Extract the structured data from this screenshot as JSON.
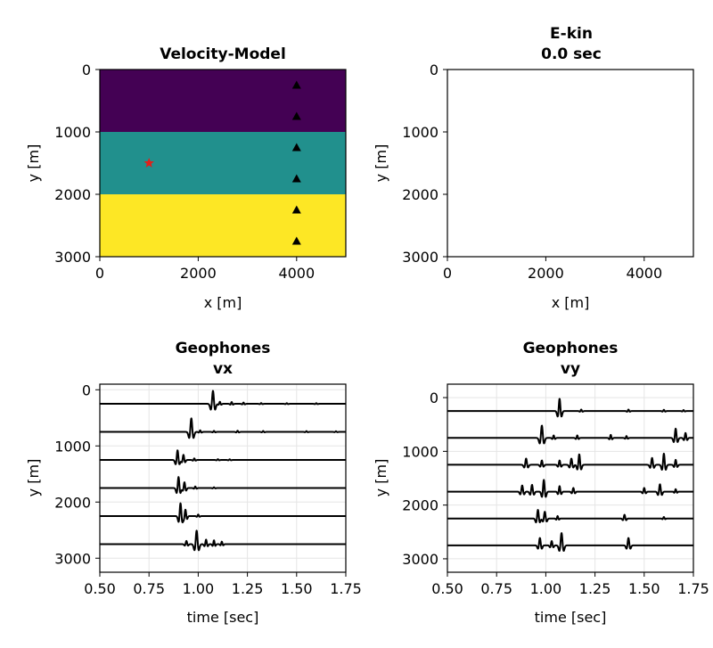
{
  "colors": {
    "layer1": "#440154",
    "layer2": "#21908d",
    "layer3": "#fde725",
    "source": "#e0201b",
    "receiver": "#000000",
    "trace": "#000000"
  },
  "chart_data": [
    {
      "type": "heatmap",
      "title": "Velocity-Model",
      "xlabel": "x [m]",
      "ylabel": "y [m]",
      "xlim": [
        0,
        5000
      ],
      "ylim": [
        3000,
        0
      ],
      "xticks": [
        "0",
        "2000",
        "4000"
      ],
      "xtick_values": [
        0,
        2000,
        4000
      ],
      "yticks": [
        "0",
        "1000",
        "2000",
        "3000"
      ],
      "ytick_values": [
        0,
        1000,
        2000,
        3000
      ],
      "layers": [
        {
          "y_from": 0,
          "y_to": 1000,
          "color": "#440154"
        },
        {
          "y_from": 1000,
          "y_to": 2000,
          "color": "#21908d"
        },
        {
          "y_from": 2000,
          "y_to": 3000,
          "color": "#fde725"
        }
      ],
      "source": {
        "x": 1000,
        "y": 1500,
        "marker": "star"
      },
      "receivers": [
        {
          "x": 4000,
          "y": 250
        },
        {
          "x": 4000,
          "y": 750
        },
        {
          "x": 4000,
          "y": 1250
        },
        {
          "x": 4000,
          "y": 1750
        },
        {
          "x": 4000,
          "y": 2250
        },
        {
          "x": 4000,
          "y": 2750
        }
      ],
      "grid": false
    },
    {
      "type": "heatmap",
      "title_line1": "E-kin",
      "title_line2": "0.0 sec",
      "xlabel": "x [m]",
      "ylabel": "y [m]",
      "xlim": [
        0,
        5000
      ],
      "ylim": [
        3000,
        0
      ],
      "xticks": [
        "0",
        "2000",
        "4000"
      ],
      "xtick_values": [
        0,
        2000,
        4000
      ],
      "yticks": [
        "0",
        "1000",
        "2000",
        "3000"
      ],
      "ytick_values": [
        0,
        1000,
        2000,
        3000
      ],
      "grid": false
    },
    {
      "type": "line",
      "title_line1": "Geophones",
      "title_line2": "vx",
      "xlabel": "time [sec]",
      "ylabel": "y [m]",
      "xlim": [
        0.5,
        1.75
      ],
      "ylim": [
        3250,
        -100
      ],
      "xticks": [
        "0.50",
        "0.75",
        "1.00",
        "1.25",
        "1.50",
        "1.75"
      ],
      "xtick_values": [
        0.5,
        0.75,
        1.0,
        1.25,
        1.5,
        1.75
      ],
      "yticks": [
        "0",
        "1000",
        "2000",
        "3000"
      ],
      "ytick_values": [
        0,
        1000,
        2000,
        3000
      ],
      "grid": true,
      "series": [
        {
          "offset": 250,
          "wavelets": [
            {
              "t": 1.075,
              "a": 1.0,
              "w": 0.009
            },
            {
              "t": 1.11,
              "a": 0.16,
              "w": 0.006
            },
            {
              "t": 1.17,
              "a": 0.14,
              "w": 0.006
            },
            {
              "t": 1.23,
              "a": 0.1,
              "w": 0.006
            },
            {
              "t": 1.32,
              "a": 0.06,
              "w": 0.006
            },
            {
              "t": 1.45,
              "a": 0.05,
              "w": 0.006
            },
            {
              "t": 1.6,
              "a": 0.05,
              "w": 0.006
            }
          ]
        },
        {
          "offset": 750,
          "wavelets": [
            {
              "t": 0.965,
              "a": 1.05,
              "w": 0.009
            },
            {
              "t": 1.01,
              "a": 0.12,
              "w": 0.006
            },
            {
              "t": 1.08,
              "a": 0.08,
              "w": 0.006
            },
            {
              "t": 1.2,
              "a": 0.09,
              "w": 0.006
            },
            {
              "t": 1.33,
              "a": 0.07,
              "w": 0.006
            },
            {
              "t": 1.55,
              "a": 0.06,
              "w": 0.006
            },
            {
              "t": 1.7,
              "a": 0.05,
              "w": 0.006
            }
          ]
        },
        {
          "offset": 1250,
          "wavelets": [
            {
              "t": 0.895,
              "a": 0.75,
              "w": 0.008
            },
            {
              "t": 0.925,
              "a": 0.4,
              "w": 0.007
            },
            {
              "t": 0.98,
              "a": 0.12,
              "w": 0.006
            },
            {
              "t": 1.1,
              "a": 0.06,
              "w": 0.006
            },
            {
              "t": 1.16,
              "a": 0.05,
              "w": 0.006
            }
          ]
        },
        {
          "offset": 1750,
          "wavelets": [
            {
              "t": 0.9,
              "a": 0.85,
              "w": 0.008
            },
            {
              "t": 0.93,
              "a": 0.45,
              "w": 0.007
            },
            {
              "t": 0.985,
              "a": 0.12,
              "w": 0.006
            },
            {
              "t": 1.08,
              "a": 0.06,
              "w": 0.006
            }
          ]
        },
        {
          "offset": 2250,
          "wavelets": [
            {
              "t": 0.91,
              "a": 1.0,
              "w": 0.008
            },
            {
              "t": 0.935,
              "a": 0.5,
              "w": 0.007
            },
            {
              "t": 1.0,
              "a": 0.12,
              "w": 0.006
            }
          ]
        },
        {
          "offset": 2750,
          "wavelets": [
            {
              "t": 0.992,
              "a": 1.05,
              "w": 0.009
            },
            {
              "t": 0.94,
              "a": 0.25,
              "w": 0.007
            },
            {
              "t": 1.04,
              "a": 0.35,
              "w": 0.007
            },
            {
              "t": 1.08,
              "a": 0.3,
              "w": 0.006
            },
            {
              "t": 1.12,
              "a": 0.2,
              "w": 0.006
            }
          ]
        }
      ]
    },
    {
      "type": "line",
      "title_line1": "Geophones",
      "title_line2": "vy",
      "xlabel": "time [sec]",
      "ylabel": "y [m]",
      "xlim": [
        0.5,
        1.75
      ],
      "ylim": [
        3250,
        -250
      ],
      "xticks": [
        "0.50",
        "0.75",
        "1.00",
        "1.25",
        "1.50",
        "1.75"
      ],
      "xtick_values": [
        0.5,
        0.75,
        1.0,
        1.25,
        1.5,
        1.75
      ],
      "yticks": [
        "0",
        "1000",
        "2000",
        "3000"
      ],
      "ytick_values": [
        0,
        1000,
        2000,
        3000
      ],
      "grid": true,
      "series": [
        {
          "offset": 250,
          "wavelets": [
            {
              "t": 1.07,
              "a": 1.0,
              "w": 0.008
            },
            {
              "t": 1.18,
              "a": 0.12,
              "w": 0.006
            },
            {
              "t": 1.42,
              "a": 0.12,
              "w": 0.006
            },
            {
              "t": 1.6,
              "a": 0.1,
              "w": 0.006
            },
            {
              "t": 1.7,
              "a": 0.08,
              "w": 0.006
            }
          ]
        },
        {
          "offset": 750,
          "wavelets": [
            {
              "t": 0.98,
              "a": 1.0,
              "w": 0.009
            },
            {
              "t": 1.04,
              "a": 0.2,
              "w": 0.006
            },
            {
              "t": 1.16,
              "a": 0.2,
              "w": 0.006
            },
            {
              "t": 1.33,
              "a": 0.25,
              "w": 0.006
            },
            {
              "t": 1.41,
              "a": 0.15,
              "w": 0.006
            },
            {
              "t": 1.66,
              "a": 0.75,
              "w": 0.008
            },
            {
              "t": 1.71,
              "a": 0.4,
              "w": 0.007
            }
          ]
        },
        {
          "offset": 1250,
          "wavelets": [
            {
              "t": 0.9,
              "a": 0.5,
              "w": 0.008
            },
            {
              "t": 0.98,
              "a": 0.35,
              "w": 0.007
            },
            {
              "t": 1.07,
              "a": 0.35,
              "w": 0.007
            },
            {
              "t": 1.13,
              "a": 0.5,
              "w": 0.008
            },
            {
              "t": 1.17,
              "a": 0.85,
              "w": 0.008
            },
            {
              "t": 1.54,
              "a": 0.55,
              "w": 0.008
            },
            {
              "t": 1.6,
              "a": 0.9,
              "w": 0.008
            },
            {
              "t": 1.66,
              "a": 0.4,
              "w": 0.007
            }
          ]
        },
        {
          "offset": 1750,
          "wavelets": [
            {
              "t": 0.88,
              "a": 0.5,
              "w": 0.008
            },
            {
              "t": 0.93,
              "a": 0.55,
              "w": 0.008
            },
            {
              "t": 0.99,
              "a": 0.95,
              "w": 0.008
            },
            {
              "t": 1.07,
              "a": 0.45,
              "w": 0.007
            },
            {
              "t": 1.14,
              "a": 0.3,
              "w": 0.007
            },
            {
              "t": 1.5,
              "a": 0.3,
              "w": 0.007
            },
            {
              "t": 1.58,
              "a": 0.6,
              "w": 0.008
            },
            {
              "t": 1.66,
              "a": 0.2,
              "w": 0.006
            }
          ]
        },
        {
          "offset": 2250,
          "wavelets": [
            {
              "t": 0.96,
              "a": 0.7,
              "w": 0.008
            },
            {
              "t": 0.995,
              "a": 0.55,
              "w": 0.008
            },
            {
              "t": 1.06,
              "a": 0.2,
              "w": 0.006
            },
            {
              "t": 1.4,
              "a": 0.3,
              "w": 0.007
            },
            {
              "t": 1.6,
              "a": 0.12,
              "w": 0.006
            }
          ]
        },
        {
          "offset": 2750,
          "wavelets": [
            {
              "t": 0.97,
              "a": 0.6,
              "w": 0.008
            },
            {
              "t": 1.03,
              "a": 0.35,
              "w": 0.007
            },
            {
              "t": 1.08,
              "a": 1.0,
              "w": 0.009
            },
            {
              "t": 1.42,
              "a": 0.6,
              "w": 0.008
            }
          ]
        }
      ]
    }
  ]
}
